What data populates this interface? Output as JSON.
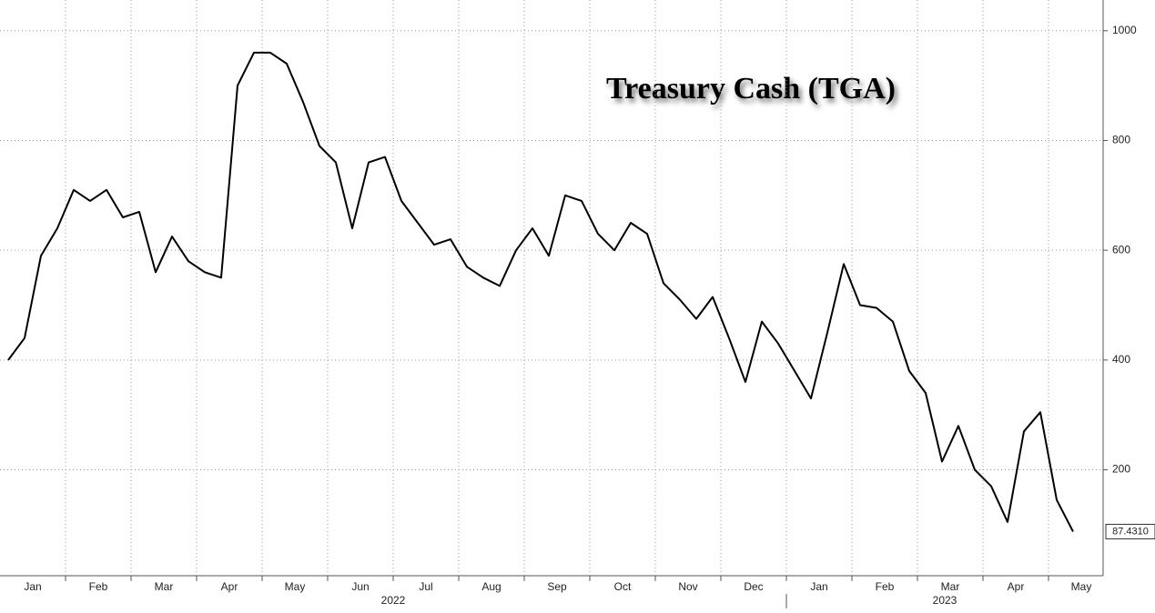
{
  "chart_data": {
    "type": "line",
    "title": "Treasury Cash (TGA)",
    "x": [
      "2022-01",
      "2022-01",
      "2022-01",
      "2022-01",
      "2022-02",
      "2022-02",
      "2022-02",
      "2022-02",
      "2022-03",
      "2022-03",
      "2022-03",
      "2022-03",
      "2022-04",
      "2022-04",
      "2022-04",
      "2022-04",
      "2022-05",
      "2022-05",
      "2022-05",
      "2022-05",
      "2022-06",
      "2022-06",
      "2022-06",
      "2022-06",
      "2022-07",
      "2022-07",
      "2022-07",
      "2022-07",
      "2022-08",
      "2022-08",
      "2022-08",
      "2022-08",
      "2022-09",
      "2022-09",
      "2022-09",
      "2022-09",
      "2022-10",
      "2022-10",
      "2022-10",
      "2022-10",
      "2022-11",
      "2022-11",
      "2022-11",
      "2022-11",
      "2022-12",
      "2022-12",
      "2022-12",
      "2022-12",
      "2023-01",
      "2023-01",
      "2023-01",
      "2023-01",
      "2023-02",
      "2023-02",
      "2023-02",
      "2023-02",
      "2023-03",
      "2023-03",
      "2023-03",
      "2023-03",
      "2023-04",
      "2023-04",
      "2023-04",
      "2023-04",
      "2023-05",
      "2023-05"
    ],
    "series": [
      {
        "name": "TGA",
        "color": "#000000",
        "values": [
          400,
          440,
          590,
          640,
          710,
          690,
          710,
          660,
          670,
          560,
          625,
          580,
          560,
          550,
          900,
          960,
          960,
          940,
          870,
          790,
          760,
          640,
          760,
          770,
          690,
          650,
          610,
          620,
          570,
          550,
          535,
          600,
          640,
          590,
          700,
          690,
          630,
          600,
          650,
          630,
          540,
          510,
          475,
          515,
          440,
          360,
          470,
          430,
          380,
          330,
          450,
          575,
          500,
          495,
          470,
          380,
          340,
          215,
          280,
          200,
          170,
          105,
          270,
          305,
          145,
          87.431
        ],
        "value_labels": [
          null,
          null,
          null,
          null,
          null,
          null,
          null,
          null,
          null,
          null,
          null,
          null,
          null,
          null,
          null,
          null,
          null,
          null,
          null,
          null,
          null,
          null,
          null,
          null,
          null,
          null,
          null,
          null,
          null,
          null,
          null,
          null,
          null,
          null,
          null,
          null,
          null,
          null,
          null,
          null,
          null,
          null,
          null,
          null,
          null,
          null,
          null,
          null,
          null,
          null,
          null,
          null,
          null,
          null,
          null,
          null,
          null,
          null,
          null,
          null,
          null,
          null,
          null,
          null,
          null,
          "87.4310"
        ]
      }
    ],
    "xticks": [
      {
        "value": "2022-01",
        "label": "Jan"
      },
      {
        "value": "2022-02",
        "label": "Feb"
      },
      {
        "value": "2022-03",
        "label": "Mar"
      },
      {
        "value": "2022-04",
        "label": "Apr"
      },
      {
        "value": "2022-05",
        "label": "May"
      },
      {
        "value": "2022-06",
        "label": "Jun"
      },
      {
        "value": "2022-07",
        "label": "Jul"
      },
      {
        "value": "2022-08",
        "label": "Aug"
      },
      {
        "value": "2022-09",
        "label": "Sep"
      },
      {
        "value": "2022-10",
        "label": "Oct"
      },
      {
        "value": "2022-11",
        "label": "Nov"
      },
      {
        "value": "2022-12",
        "label": "Dec"
      },
      {
        "value": "2023-01",
        "label": "Jan"
      },
      {
        "value": "2023-02",
        "label": "Feb"
      },
      {
        "value": "2023-03",
        "label": "Mar"
      },
      {
        "value": "2023-04",
        "label": "Apr"
      },
      {
        "value": "2023-05",
        "label": "May"
      }
    ],
    "year_labels": [
      "2022",
      "2023"
    ],
    "ylim": [
      7,
      1056
    ],
    "yticks": [
      200,
      400,
      600,
      800,
      1000
    ],
    "grid": true
  }
}
